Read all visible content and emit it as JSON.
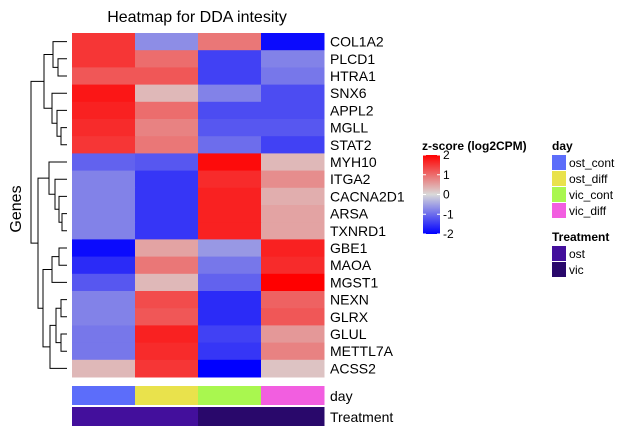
{
  "chart_data": {
    "type": "heatmap",
    "title": "Heatmap for DDA intesity",
    "ylabel": "Genes",
    "rows": [
      "COL1A2",
      "PLCD1",
      "HTRA1",
      "SNX6",
      "APPL2",
      "MGLL",
      "STAT2",
      "MYH10",
      "ITGA2",
      "CACNA2D1",
      "ARSA",
      "TXNRD1",
      "GBE1",
      "MAOA",
      "MGST1",
      "NEXN",
      "GLRX",
      "GLUL",
      "METTL7A",
      "ACSS2"
    ],
    "columns": [
      "ost_cont",
      "ost_diff",
      "vic_cont",
      "vic_diff"
    ],
    "values": [
      [
        1.5,
        -0.7,
        0.9,
        -1.9
      ],
      [
        1.5,
        1.0,
        -1.4,
        -0.8
      ],
      [
        1.2,
        1.2,
        -1.4,
        -0.9
      ],
      [
        1.8,
        0.3,
        -0.8,
        -1.3
      ],
      [
        1.7,
        1.0,
        -1.3,
        -1.3
      ],
      [
        1.6,
        0.8,
        -1.2,
        -1.2
      ],
      [
        1.5,
        0.9,
        -1.0,
        -1.4
      ],
      [
        -1.1,
        -1.2,
        1.9,
        0.3
      ],
      [
        -0.8,
        -1.5,
        1.6,
        0.7
      ],
      [
        -0.8,
        -1.5,
        1.7,
        0.4
      ],
      [
        -0.8,
        -1.5,
        1.7,
        0.5
      ],
      [
        -0.8,
        -1.5,
        1.7,
        0.5
      ],
      [
        -1.9,
        0.5,
        -0.6,
        1.7
      ],
      [
        -1.6,
        0.9,
        -0.9,
        1.6
      ],
      [
        -1.2,
        0.3,
        -1.1,
        2.0
      ],
      [
        -0.8,
        1.3,
        -1.6,
        1.1
      ],
      [
        -0.8,
        1.2,
        -1.6,
        1.2
      ],
      [
        -0.9,
        1.7,
        -1.4,
        0.6
      ],
      [
        -0.9,
        1.6,
        -1.5,
        0.8
      ],
      [
        0.3,
        1.5,
        -2.0,
        0.2
      ]
    ],
    "annotation_rows": [
      {
        "name": "day",
        "values": [
          "ost_cont",
          "ost_diff",
          "vic_cont",
          "vic_diff"
        ]
      },
      {
        "name": "Treatment",
        "values": [
          "ost",
          "ost",
          "vic",
          "vic"
        ]
      }
    ],
    "colorbar": {
      "title": "z-score (log2CPM)",
      "ticks": [
        "2",
        "1",
        "0",
        "-1",
        "-2"
      ],
      "range": [
        -2,
        2
      ],
      "low_color": "#0000ff",
      "mid_color": "#d9d9d9",
      "high_color": "#ff0000"
    },
    "legends": [
      {
        "title": "day",
        "entries": [
          {
            "label": "ost_cont",
            "color": "#5c6dfa"
          },
          {
            "label": "ost_diff",
            "color": "#e9e24c"
          },
          {
            "label": "vic_cont",
            "color": "#a9f74f"
          },
          {
            "label": "vic_diff",
            "color": "#f25ee0"
          }
        ]
      },
      {
        "title": "Treatment",
        "entries": [
          {
            "label": "ost",
            "color": "#430f9c"
          },
          {
            "label": "vic",
            "color": "#29086b"
          }
        ]
      }
    ],
    "dendrogram": "row"
  }
}
